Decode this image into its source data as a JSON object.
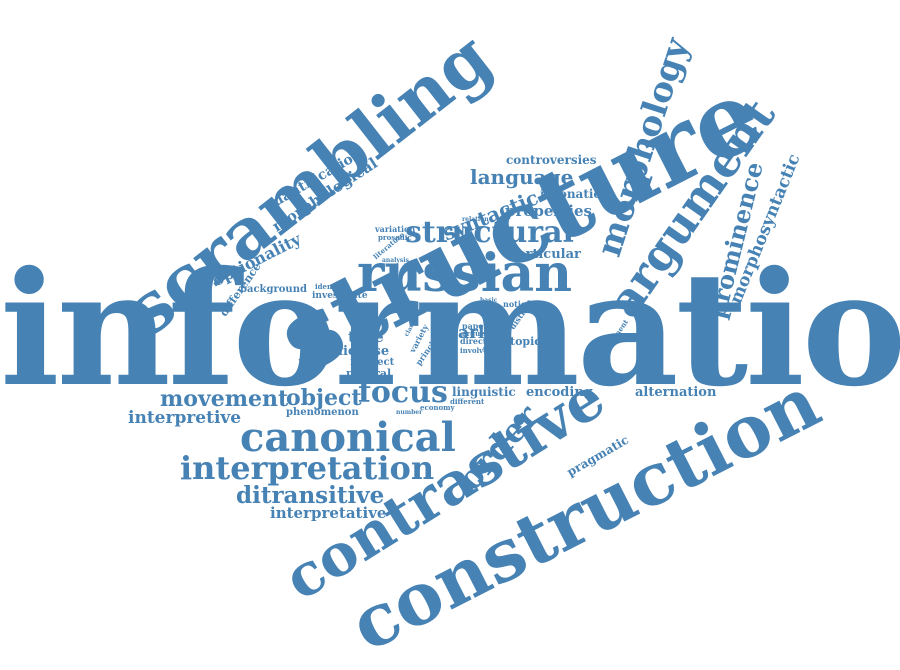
{
  "colors": {
    "word": "#4682b4",
    "background": "#ffffff"
  },
  "words": {
    "information": "information",
    "structure": "structure",
    "scrambling": "scrambling",
    "construction": "construction",
    "contrastive": "contrastive",
    "russian": "russian",
    "argument": "argument",
    "morphology": "morphology",
    "prominence": "prominence",
    "morphosyntactic": "morphosyntactic",
    "canonical": "canonical",
    "interpretation": "interpretation",
    "ditransitive": "ditransitive",
    "interpretative": "interpretative",
    "interpretive": "interpretive",
    "movement": "movement",
    "object": "object",
    "focus": "focus",
    "order": "order",
    "structural": "structural",
    "language": "language",
    "properties": "properties",
    "syntactic": "syntactic",
    "controversies": "controversies",
    "intonation": "intonation",
    "particular": "particular",
    "marker": "marker",
    "optionality": "optionality",
    "difference": "difference",
    "quantification": "quantification",
    "morphological": "morphological",
    "background": "background",
    "investigate": "investigate",
    "identical": "identical",
    "neutral": "neutral",
    "variation": "variation",
    "prosodic": "prosodic",
    "literature": "literature",
    "analysis": "analysis",
    "relation": "relation",
    "type": "type",
    "license": "license",
    "indirect": "indirect",
    "variety": "variety",
    "principle": "principle",
    "paper": "paper",
    "argue": "argue",
    "direct": "direct",
    "involve": "involve",
    "choice": "choice",
    "exhibit": "exhibit",
    "notion": "notion",
    "distinct": "distinct",
    "basic": "basic",
    "topic": "topic",
    "linguistic": "linguistic",
    "different": "different",
    "encoding": "encoding",
    "alternation": "alternation",
    "phenomenon": "phenomenon",
    "economy": "economy",
    "number": "number",
    "pragmatic": "pragmatic",
    "prominent": "prominent",
    "clause": "clause"
  }
}
